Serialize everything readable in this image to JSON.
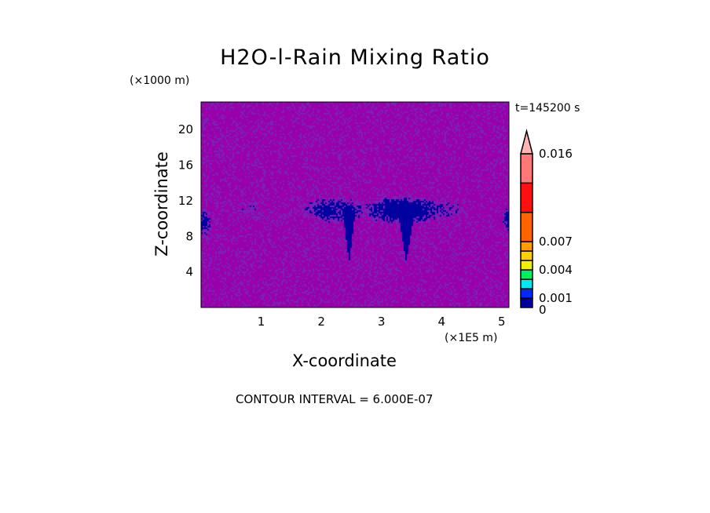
{
  "chart_data": {
    "type": "heatmap",
    "title": "H2O-l-Rain Mixing Ratio",
    "xlabel": "X-coordinate",
    "ylabel": "Z-coordinate",
    "x_unit": "(×1E5 m)",
    "y_unit": "(×1000 m)",
    "time_label": "t=145200 s",
    "footer": "CONTOUR INTERVAL = 6.000E-07",
    "xlim": [
      0,
      5.12
    ],
    "ylim": [
      0,
      23.1
    ],
    "xticks": [
      1,
      2,
      3,
      4,
      5
    ],
    "yticks": [
      4,
      8,
      12,
      16,
      20
    ],
    "colorbar": {
      "levels": [
        0,
        0.001,
        0.002,
        0.003,
        0.004,
        0.005,
        0.006,
        0.007,
        0.01,
        0.013,
        0.016
      ],
      "labels": [
        "0",
        "0.001",
        "0.004",
        "0.007",
        "0.016"
      ],
      "label_values": [
        0,
        0.001,
        0.004,
        0.007,
        0.016
      ],
      "colors": [
        "#0000a0",
        "#0028ff",
        "#00e8f0",
        "#00f060",
        "#f0f000",
        "#ffd000",
        "#ff9c00",
        "#ff6400",
        "#ff1010",
        "#ff7878"
      ],
      "extend_color": "#ffb4b4",
      "extend": "max"
    },
    "background_color": "#9900aa",
    "low_value_color": "#7a22b8",
    "feature_color": "#0000a0"
  }
}
